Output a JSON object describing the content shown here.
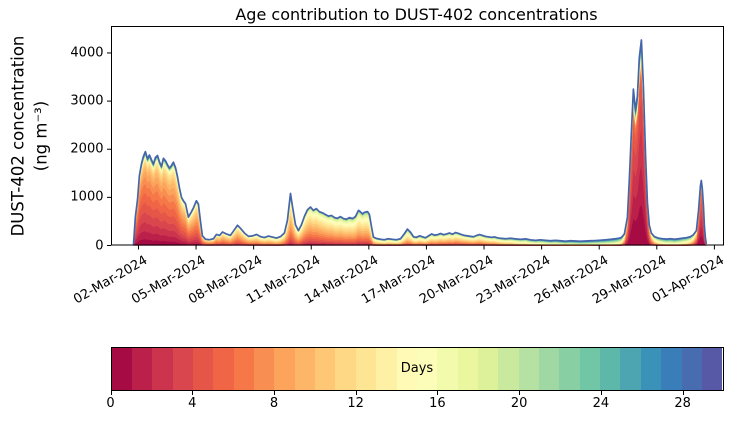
{
  "figure": {
    "background": "#ffffff"
  },
  "chart_data": {
    "type": "area",
    "stacked": true,
    "title": "Age contribution to DUST-402 concentrations",
    "ylabel_line1": "DUST-402 concentration",
    "ylabel_line2": "(ng m⁻³)",
    "xlabel": "",
    "grid": false,
    "ylim": [
      0,
      4560
    ],
    "y_ticks": [
      0,
      1000,
      2000,
      3000,
      4000
    ],
    "x_axis": {
      "min_day": -0.43,
      "max_day": 31.5,
      "epoch": "days since 2024-03-01 00:00"
    },
    "x_ticks": [
      {
        "day": 1,
        "label": "02-Mar-2024"
      },
      {
        "day": 4,
        "label": "05-Mar-2024"
      },
      {
        "day": 7,
        "label": "08-Mar-2024"
      },
      {
        "day": 10,
        "label": "11-Mar-2024"
      },
      {
        "day": 13,
        "label": "14-Mar-2024"
      },
      {
        "day": 16,
        "label": "17-Mar-2024"
      },
      {
        "day": 19,
        "label": "20-Mar-2024"
      },
      {
        "day": 22,
        "label": "23-Mar-2024"
      },
      {
        "day": 25,
        "label": "26-Mar-2024"
      },
      {
        "day": 28,
        "label": "29-Mar-2024"
      },
      {
        "day": 31,
        "label": "01-Apr-2024"
      }
    ],
    "envelope_color": "#4565aa",
    "age_bins": 30,
    "samples_columns": [
      "day",
      "total_ng_m3",
      "age_mean_days",
      "age_sigma_days",
      "fresh_boost"
    ],
    "samples": [
      [
        0.74,
        25,
        3.0,
        3.5,
        0
      ],
      [
        0.84,
        600,
        3.2,
        3.6,
        0
      ],
      [
        0.95,
        950,
        3.4,
        3.7,
        0
      ],
      [
        1.05,
        1450,
        3.5,
        3.8,
        0
      ],
      [
        1.16,
        1700,
        3.6,
        3.8,
        0
      ],
      [
        1.26,
        1850,
        3.7,
        3.9,
        0
      ],
      [
        1.36,
        1950,
        3.8,
        4.0,
        0
      ],
      [
        1.47,
        1800,
        3.9,
        4.0,
        0
      ],
      [
        1.57,
        1880,
        4.0,
        4.0,
        0
      ],
      [
        1.68,
        1780,
        4.1,
        4.1,
        0
      ],
      [
        1.78,
        1690,
        4.2,
        4.1,
        0
      ],
      [
        1.89,
        1830,
        4.3,
        4.2,
        0
      ],
      [
        1.99,
        1870,
        4.4,
        4.2,
        0
      ],
      [
        2.09,
        1740,
        4.5,
        4.2,
        0
      ],
      [
        2.2,
        1640,
        4.6,
        4.3,
        0
      ],
      [
        2.3,
        1810,
        4.7,
        4.3,
        0
      ],
      [
        2.41,
        1760,
        4.8,
        4.3,
        0
      ],
      [
        2.51,
        1680,
        4.9,
        4.4,
        0
      ],
      [
        2.61,
        1610,
        5.0,
        4.4,
        0
      ],
      [
        2.72,
        1660,
        5.1,
        4.4,
        0
      ],
      [
        2.82,
        1730,
        5.2,
        4.5,
        0
      ],
      [
        2.93,
        1620,
        5.3,
        4.5,
        0
      ],
      [
        3.03,
        1440,
        5.4,
        4.5,
        0
      ],
      [
        3.14,
        1190,
        5.5,
        4.6,
        0
      ],
      [
        3.24,
        1000,
        5.6,
        4.6,
        0
      ],
      [
        3.34,
        930,
        5.7,
        4.6,
        0
      ],
      [
        3.45,
        870,
        5.8,
        4.7,
        0
      ],
      [
        3.6,
        590,
        6.0,
        4.7,
        0
      ],
      [
        3.76,
        700,
        6.1,
        4.7,
        0
      ],
      [
        3.86,
        780,
        6.2,
        4.8,
        0
      ],
      [
        4.02,
        930,
        6.3,
        4.8,
        0
      ],
      [
        4.12,
        860,
        6.4,
        4.8,
        0
      ],
      [
        4.23,
        500,
        6.5,
        4.8,
        0
      ],
      [
        4.33,
        200,
        6.6,
        4.8,
        0
      ],
      [
        4.49,
        130,
        7.0,
        4.5,
        0
      ],
      [
        4.7,
        120,
        7.4,
        4.5,
        0
      ],
      [
        4.91,
        140,
        7.8,
        4.5,
        0
      ],
      [
        5.06,
        230,
        8.0,
        4.5,
        0
      ],
      [
        5.22,
        210,
        8.0,
        4.5,
        0
      ],
      [
        5.38,
        280,
        8.0,
        4.5,
        0
      ],
      [
        5.58,
        240,
        8.3,
        4.6,
        0
      ],
      [
        5.79,
        210,
        8.6,
        4.6,
        0
      ],
      [
        5.95,
        300,
        8.4,
        4.6,
        0
      ],
      [
        6.16,
        420,
        8.2,
        4.7,
        0
      ],
      [
        6.31,
        360,
        8.5,
        4.7,
        0
      ],
      [
        6.52,
        260,
        8.8,
        4.8,
        0
      ],
      [
        6.73,
        190,
        9.0,
        4.8,
        0
      ],
      [
        6.94,
        200,
        9.3,
        4.9,
        0
      ],
      [
        7.15,
        230,
        9.5,
        4.9,
        0
      ],
      [
        7.35,
        185,
        9.8,
        5.0,
        0
      ],
      [
        7.56,
        165,
        10.0,
        5.0,
        0
      ],
      [
        7.77,
        195,
        10.2,
        5.0,
        0
      ],
      [
        7.98,
        175,
        10.4,
        5.1,
        0
      ],
      [
        8.19,
        155,
        10.6,
        5.1,
        0
      ],
      [
        8.4,
        185,
        10.3,
        5.1,
        0
      ],
      [
        8.6,
        260,
        9.6,
        5.1,
        0
      ],
      [
        8.76,
        520,
        9.2,
        5.0,
        0
      ],
      [
        8.92,
        1080,
        9.0,
        5.0,
        0
      ],
      [
        9.02,
        820,
        9.0,
        5.0,
        0
      ],
      [
        9.18,
        430,
        9.1,
        5.1,
        0
      ],
      [
        9.33,
        310,
        9.2,
        5.2,
        0
      ],
      [
        9.49,
        430,
        9.0,
        5.3,
        0
      ],
      [
        9.65,
        610,
        8.8,
        5.4,
        0
      ],
      [
        9.8,
        740,
        8.7,
        5.4,
        0
      ],
      [
        9.96,
        800,
        8.6,
        5.5,
        0
      ],
      [
        10.11,
        730,
        8.7,
        5.5,
        0
      ],
      [
        10.27,
        765,
        8.8,
        5.5,
        0
      ],
      [
        10.43,
        700,
        8.9,
        5.5,
        0
      ],
      [
        10.58,
        680,
        9.0,
        5.5,
        0
      ],
      [
        10.74,
        645,
        9.1,
        5.6,
        0
      ],
      [
        10.9,
        610,
        9.2,
        5.6,
        0
      ],
      [
        11.05,
        625,
        9.3,
        5.6,
        0
      ],
      [
        11.21,
        580,
        9.4,
        5.6,
        0
      ],
      [
        11.36,
        565,
        9.5,
        5.7,
        0
      ],
      [
        11.52,
        600,
        9.6,
        5.7,
        0
      ],
      [
        11.68,
        560,
        9.7,
        5.7,
        0
      ],
      [
        11.83,
        545,
        9.8,
        5.7,
        0
      ],
      [
        11.99,
        580,
        9.9,
        5.8,
        0
      ],
      [
        12.15,
        560,
        10.0,
        5.8,
        0
      ],
      [
        12.3,
        600,
        10.0,
        5.8,
        0
      ],
      [
        12.46,
        730,
        9.8,
        5.8,
        0
      ],
      [
        12.56,
        700,
        9.8,
        5.8,
        0
      ],
      [
        12.67,
        655,
        9.9,
        5.9,
        0
      ],
      [
        12.77,
        690,
        9.9,
        5.9,
        0
      ],
      [
        12.93,
        705,
        10.0,
        5.9,
        0
      ],
      [
        13.03,
        645,
        10.1,
        5.9,
        0
      ],
      [
        13.14,
        390,
        10.4,
        6.0,
        0
      ],
      [
        13.24,
        175,
        11.0,
        6.0,
        0
      ],
      [
        13.4,
        145,
        11.4,
        6.0,
        0
      ],
      [
        13.6,
        130,
        11.8,
        6.1,
        0
      ],
      [
        13.81,
        120,
        12.0,
        6.1,
        0
      ],
      [
        14.02,
        140,
        12.0,
        6.1,
        0
      ],
      [
        14.23,
        128,
        12.0,
        6.2,
        0
      ],
      [
        14.44,
        120,
        12.0,
        6.2,
        0
      ],
      [
        14.65,
        140,
        12.0,
        6.2,
        0
      ],
      [
        14.86,
        250,
        11.8,
        6.2,
        0
      ],
      [
        15.01,
        340,
        11.6,
        6.2,
        0
      ],
      [
        15.17,
        275,
        11.6,
        6.2,
        0
      ],
      [
        15.33,
        180,
        11.5,
        6.2,
        0.15
      ],
      [
        15.48,
        170,
        11.5,
        6.2,
        0.22
      ],
      [
        15.64,
        200,
        11.4,
        6.2,
        0.18
      ],
      [
        15.8,
        180,
        11.3,
        6.2,
        0.1
      ],
      [
        15.95,
        160,
        11.2,
        6.2,
        0
      ],
      [
        16.11,
        200,
        11.0,
        6.2,
        0
      ],
      [
        16.27,
        240,
        10.8,
        6.2,
        0
      ],
      [
        16.42,
        215,
        10.7,
        6.2,
        0
      ],
      [
        16.58,
        225,
        10.6,
        6.2,
        0
      ],
      [
        16.73,
        250,
        10.5,
        6.2,
        0
      ],
      [
        16.89,
        225,
        10.4,
        6.2,
        0
      ],
      [
        17.05,
        240,
        10.3,
        6.2,
        0
      ],
      [
        17.2,
        260,
        10.2,
        6.2,
        0
      ],
      [
        17.36,
        235,
        10.1,
        6.2,
        0
      ],
      [
        17.52,
        270,
        10.0,
        6.2,
        0
      ],
      [
        17.67,
        250,
        10.0,
        6.2,
        0
      ],
      [
        17.83,
        228,
        10.0,
        6.2,
        0
      ],
      [
        17.98,
        210,
        10.0,
        6.2,
        0
      ],
      [
        18.14,
        200,
        10.1,
        6.2,
        0
      ],
      [
        18.3,
        190,
        10.2,
        6.2,
        0
      ],
      [
        18.45,
        182,
        10.3,
        6.3,
        0
      ],
      [
        18.61,
        208,
        10.4,
        6.3,
        0
      ],
      [
        18.77,
        228,
        10.5,
        6.3,
        0
      ],
      [
        18.92,
        208,
        10.7,
        6.3,
        0
      ],
      [
        19.08,
        188,
        10.9,
        6.3,
        0
      ],
      [
        19.23,
        180,
        11.1,
        6.3,
        0
      ],
      [
        19.39,
        170,
        11.4,
        6.3,
        0
      ],
      [
        19.55,
        178,
        11.7,
        6.4,
        0
      ],
      [
        19.7,
        160,
        12.0,
        6.4,
        0
      ],
      [
        19.86,
        150,
        12.4,
        6.4,
        0
      ],
      [
        20.12,
        140,
        13.0,
        6.5,
        0
      ],
      [
        20.38,
        150,
        13.6,
        6.5,
        0
      ],
      [
        20.64,
        138,
        14.2,
        6.6,
        0
      ],
      [
        20.9,
        128,
        14.8,
        6.6,
        0
      ],
      [
        21.16,
        138,
        15.4,
        6.7,
        0
      ],
      [
        21.42,
        118,
        16.0,
        6.7,
        0
      ],
      [
        21.68,
        108,
        16.5,
        6.8,
        0
      ],
      [
        21.94,
        118,
        17.0,
        6.8,
        0
      ],
      [
        22.2,
        108,
        17.5,
        6.8,
        0
      ],
      [
        22.46,
        98,
        18.0,
        6.9,
        0
      ],
      [
        22.72,
        108,
        18.4,
        6.9,
        0
      ],
      [
        22.98,
        98,
        18.8,
        7.0,
        0
      ],
      [
        23.24,
        88,
        19.2,
        7.0,
        0
      ],
      [
        23.5,
        98,
        19.5,
        7.0,
        0
      ],
      [
        23.76,
        93,
        19.8,
        7.0,
        0
      ],
      [
        24.02,
        88,
        20.0,
        7.0,
        0
      ],
      [
        24.28,
        93,
        20.0,
        7.0,
        0
      ],
      [
        24.54,
        98,
        20.0,
        7.0,
        0.1
      ],
      [
        24.8,
        103,
        20.0,
        7.0,
        0.28
      ],
      [
        25.06,
        110,
        20.0,
        7.0,
        0.25
      ],
      [
        25.32,
        118,
        19.8,
        7.0,
        0.1
      ],
      [
        25.58,
        128,
        19.5,
        7.0,
        0
      ],
      [
        25.84,
        140,
        19.0,
        7.0,
        0
      ],
      [
        26.0,
        150,
        18.0,
        7.0,
        0
      ],
      [
        26.16,
        168,
        16.0,
        7.0,
        0.1
      ],
      [
        26.31,
        240,
        10.0,
        6.0,
        0.3
      ],
      [
        26.47,
        580,
        5.0,
        3.5,
        0.5
      ],
      [
        26.57,
        1400,
        3.5,
        2.6,
        0.6
      ],
      [
        26.68,
        2400,
        2.8,
        2.2,
        0.7
      ],
      [
        26.78,
        3250,
        2.4,
        2.0,
        0.7
      ],
      [
        26.89,
        2800,
        2.3,
        2.0,
        0.7
      ],
      [
        26.99,
        3100,
        2.2,
        1.9,
        0.7
      ],
      [
        27.09,
        3900,
        2.0,
        1.8,
        0.7
      ],
      [
        27.2,
        4270,
        1.9,
        1.8,
        0.7
      ],
      [
        27.3,
        3300,
        2.0,
        1.8,
        0.7
      ],
      [
        27.41,
        1900,
        2.2,
        2.0,
        0.6
      ],
      [
        27.51,
        900,
        2.8,
        2.4,
        0.4
      ],
      [
        27.61,
        420,
        4.5,
        3.5,
        0.2
      ],
      [
        27.72,
        255,
        8.0,
        5.5,
        0
      ],
      [
        27.87,
        185,
        12.0,
        6.5,
        0
      ],
      [
        28.08,
        155,
        15.0,
        7.0,
        0
      ],
      [
        28.29,
        142,
        17.0,
        7.0,
        0
      ],
      [
        28.5,
        132,
        18.0,
        7.0,
        0
      ],
      [
        28.71,
        142,
        18.5,
        7.0,
        0
      ],
      [
        28.92,
        130,
        18.5,
        7.0,
        0
      ],
      [
        29.13,
        140,
        18.0,
        7.0,
        0
      ],
      [
        29.33,
        152,
        17.0,
        7.0,
        0
      ],
      [
        29.54,
        162,
        16.0,
        7.0,
        0
      ],
      [
        29.75,
        182,
        14.0,
        7.0,
        0.1
      ],
      [
        29.91,
        225,
        11.0,
        6.5,
        0.2
      ],
      [
        30.06,
        310,
        7.0,
        5.0,
        0.4
      ],
      [
        30.17,
        720,
        4.0,
        3.0,
        0.6
      ],
      [
        30.27,
        1230,
        3.0,
        2.4,
        0.7
      ],
      [
        30.32,
        1350,
        2.8,
        2.3,
        0.7
      ],
      [
        30.37,
        1180,
        2.9,
        2.4,
        0.7
      ],
      [
        30.43,
        800,
        3.2,
        2.6,
        0.6
      ],
      [
        30.48,
        400,
        4.0,
        3.2,
        0.4
      ],
      [
        30.53,
        160,
        6.0,
        4.5,
        0.2
      ],
      [
        30.58,
        35,
        8.0,
        5.5,
        0
      ]
    ],
    "colorbar": {
      "label": "Days",
      "min": 0,
      "max": 30,
      "ticks": [
        0,
        4,
        8,
        12,
        16,
        20,
        24,
        28
      ],
      "colors": [
        "#a70b44",
        "#ba2049",
        "#cc344d",
        "#da464d",
        "#e55649",
        "#ef6545",
        "#f67848",
        "#f98e52",
        "#fca35c",
        "#fdb668",
        "#fec776",
        "#fed884",
        "#fee594",
        "#fef0a5",
        "#fffab6",
        "#fbfdb8",
        "#f2faac",
        "#eaf79f",
        "#dcf19a",
        "#c8e99e",
        "#b5e1a2",
        "#a0d8a4",
        "#88d0a4",
        "#71c7a5",
        "#5db8a9",
        "#4ca5b1",
        "#3b92b9",
        "#397eb8",
        "#486cb0",
        "#5758a6"
      ]
    }
  }
}
